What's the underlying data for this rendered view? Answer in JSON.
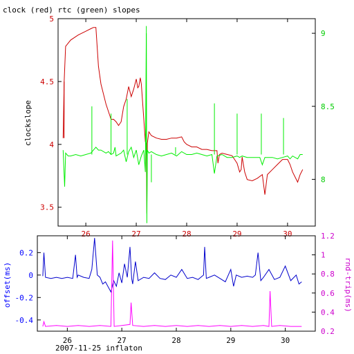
{
  "chart_data": [
    {
      "type": "line",
      "title": "clock (red) rtc (green) slopes",
      "ylabel": "clockslope",
      "xlim": [
        25.45,
        30.55
      ],
      "ylim_left": [
        3.35,
        5.0
      ],
      "ylim_right": [
        7.68,
        9.1
      ],
      "x_ticks": [
        26,
        27,
        28,
        29,
        30
      ],
      "y_left_ticks": [
        3.5,
        4,
        4.5,
        5
      ],
      "y_right_ticks": [
        8,
        8.5,
        9
      ],
      "colors": {
        "clock": "#cc0000",
        "rtc": "#00ee00",
        "axis_left": "#cc0000",
        "axis_right": "#00cc00",
        "frame": "#000000"
      },
      "series": [
        {
          "axis": "left",
          "x": [
            25.55,
            25.57,
            25.6,
            25.7,
            25.85,
            26.0,
            26.1,
            26.15,
            26.2,
            26.25,
            26.3,
            26.4,
            26.5,
            26.55,
            26.6,
            26.65,
            26.7,
            26.75,
            26.8,
            26.85,
            26.9,
            26.95,
            27.0,
            27.03,
            27.05,
            27.08,
            27.1,
            27.15,
            27.18,
            27.2,
            27.21,
            27.22,
            27.25,
            27.3,
            27.4,
            27.5,
            27.6,
            27.7,
            27.8,
            27.9,
            27.95,
            28.0,
            28.1,
            28.2,
            28.3,
            28.4,
            28.5,
            28.6,
            28.62,
            28.65,
            28.7,
            28.8,
            28.9,
            28.95,
            29.0,
            29.05,
            29.08,
            29.1,
            29.15,
            29.2,
            29.3,
            29.4,
            29.5,
            29.55,
            29.6,
            29.7,
            29.8,
            29.9,
            30.0,
            30.05,
            30.1,
            30.2,
            30.25,
            30.3
          ],
          "y": [
            4.05,
            4.5,
            4.78,
            4.83,
            4.87,
            4.9,
            4.92,
            4.93,
            4.93,
            4.62,
            4.48,
            4.32,
            4.2,
            4.2,
            4.18,
            4.15,
            4.18,
            4.3,
            4.36,
            4.46,
            4.38,
            4.44,
            4.52,
            4.45,
            4.46,
            4.53,
            4.48,
            4.2,
            4.02,
            4.0,
            3.45,
            4.01,
            4.1,
            4.07,
            4.05,
            4.04,
            4.04,
            4.05,
            4.05,
            4.06,
            4.02,
            4.0,
            3.98,
            3.98,
            3.96,
            3.96,
            3.95,
            3.95,
            3.85,
            3.92,
            3.93,
            3.92,
            3.91,
            3.88,
            3.85,
            3.78,
            3.8,
            3.9,
            3.78,
            3.72,
            3.71,
            3.73,
            3.76,
            3.6,
            3.76,
            3.8,
            3.84,
            3.88,
            3.88,
            3.84,
            3.78,
            3.7,
            3.76,
            3.8
          ]
        },
        {
          "axis": "right",
          "x": [
            25.55,
            25.58,
            25.6,
            25.65,
            25.7,
            25.8,
            25.9,
            26.0,
            26.1,
            26.15,
            26.2,
            26.25,
            26.3,
            26.4,
            26.45,
            26.5,
            26.55,
            26.58,
            26.6,
            26.7,
            26.75,
            26.8,
            26.85,
            26.9,
            26.95,
            27.0,
            27.05,
            27.1,
            27.15,
            27.18,
            27.2,
            27.21,
            27.22,
            27.25,
            27.3,
            27.4,
            27.5,
            27.6,
            27.7,
            27.8,
            27.9,
            28.0,
            28.1,
            28.2,
            28.3,
            28.4,
            28.5,
            28.55,
            28.6,
            28.7,
            28.8,
            28.9,
            29.0,
            29.05,
            29.1,
            29.2,
            29.3,
            29.45,
            29.5,
            29.55,
            29.6,
            29.7,
            29.8,
            29.9,
            30.0,
            30.05,
            30.1,
            30.2,
            30.25,
            30.3
          ],
          "y": [
            8.2,
            7.95,
            8.18,
            8.16,
            8.16,
            8.17,
            8.16,
            8.17,
            8.18,
            8.2,
            8.22,
            8.2,
            8.2,
            8.18,
            8.19,
            8.17,
            8.18,
            8.22,
            8.16,
            8.18,
            8.2,
            8.12,
            8.19,
            8.22,
            8.15,
            8.2,
            8.1,
            8.16,
            8.2,
            8.05,
            9.0,
            7.7,
            8.2,
            8.18,
            8.19,
            8.17,
            8.16,
            8.17,
            8.18,
            8.16,
            8.19,
            8.17,
            8.17,
            8.18,
            8.17,
            8.16,
            8.17,
            8.04,
            8.16,
            8.17,
            8.15,
            8.15,
            8.16,
            8.15,
            8.16,
            8.15,
            8.15,
            8.15,
            8.1,
            8.15,
            8.15,
            8.15,
            8.14,
            8.15,
            8.16,
            8.14,
            8.16,
            8.14,
            8.17,
            8.17
          ]
        }
      ],
      "spikes": [
        {
          "axis": "left",
          "x": 25.57,
          "y": 4.5
        },
        {
          "axis": "right",
          "x": 26.12,
          "y": 8.5
        },
        {
          "axis": "right",
          "x": 26.5,
          "y": 8.45
        },
        {
          "axis": "right",
          "x": 26.82,
          "y": 8.55
        },
        {
          "axis": "right",
          "x": 27.2,
          "y": 9.05
        },
        {
          "axis": "right",
          "x": 27.3,
          "y": 7.98
        },
        {
          "axis": "right",
          "x": 27.78,
          "y": 8.22
        },
        {
          "axis": "right",
          "x": 28.55,
          "y": 8.52
        },
        {
          "axis": "right",
          "x": 29.0,
          "y": 8.45
        },
        {
          "axis": "right",
          "x": 29.48,
          "y": 8.45
        },
        {
          "axis": "right",
          "x": 29.92,
          "y": 8.42
        }
      ]
    },
    {
      "type": "line",
      "title": "",
      "ylabel": "offset(ms)",
      "ylabel_right": "rnd-trip(ms)",
      "xlabel": "2007-11-25 inflaton",
      "xlim": [
        25.45,
        30.55
      ],
      "ylim_left": [
        -0.5,
        0.35
      ],
      "ylim_right": [
        0.2,
        1.2
      ],
      "x_ticks": [
        26,
        27,
        28,
        29,
        30
      ],
      "y_left_ticks": [
        -0.4,
        -0.2,
        0,
        0.2
      ],
      "y_right_ticks": [
        0.2,
        0.4,
        0.6,
        0.8,
        1,
        1.2
      ],
      "colors": {
        "offset": "#0000cc",
        "rndtrip": "#ff00ff",
        "axis_left": "#0000ff",
        "axis_right": "#cc00cc",
        "frame": "#000000"
      },
      "series": [
        {
          "axis": "left",
          "x": [
            25.55,
            25.57,
            25.6,
            25.7,
            25.8,
            25.9,
            26.0,
            26.1,
            26.15,
            26.18,
            26.2,
            26.3,
            26.4,
            26.45,
            26.5,
            26.55,
            26.6,
            26.65,
            26.7,
            26.8,
            26.85,
            26.9,
            26.95,
            27.0,
            27.05,
            27.1,
            27.15,
            27.18,
            27.2,
            27.25,
            27.3,
            27.4,
            27.5,
            27.6,
            27.7,
            27.8,
            27.9,
            28.0,
            28.1,
            28.2,
            28.3,
            28.4,
            28.5,
            28.52,
            28.55,
            28.6,
            28.7,
            28.8,
            28.9,
            29.0,
            29.05,
            29.1,
            29.2,
            29.3,
            29.4,
            29.45,
            29.5,
            29.55,
            29.6,
            29.7,
            29.8,
            29.9,
            30.0,
            30.1,
            30.2,
            30.25,
            30.3
          ],
          "y": [
            -0.01,
            0.2,
            -0.02,
            -0.03,
            -0.02,
            -0.03,
            -0.02,
            -0.03,
            0.18,
            -0.02,
            0.0,
            -0.02,
            -0.03,
            0.05,
            0.33,
            0.0,
            -0.02,
            -0.08,
            -0.06,
            -0.15,
            -0.05,
            -0.1,
            0.02,
            -0.07,
            0.1,
            -0.02,
            0.25,
            -0.03,
            -0.08,
            0.12,
            -0.05,
            -0.02,
            -0.03,
            0.02,
            -0.03,
            -0.04,
            0.0,
            -0.02,
            0.05,
            -0.03,
            -0.02,
            -0.04,
            0.0,
            0.25,
            -0.03,
            -0.02,
            0.0,
            -0.03,
            -0.06,
            0.05,
            -0.1,
            0.0,
            -0.02,
            -0.01,
            -0.02,
            0.0,
            0.2,
            -0.05,
            -0.02,
            0.05,
            -0.04,
            -0.02,
            0.08,
            -0.05,
            0.0,
            -0.08,
            -0.06
          ]
        },
        {
          "axis": "right",
          "x": [
            25.55,
            25.57,
            25.6,
            25.8,
            26.0,
            26.2,
            26.4,
            26.6,
            26.8,
            26.83,
            26.86,
            27.0,
            27.15,
            27.17,
            27.2,
            27.4,
            27.6,
            27.8,
            28.0,
            28.2,
            28.4,
            28.6,
            28.8,
            29.0,
            29.2,
            29.4,
            29.6,
            29.7,
            29.72,
            29.75,
            29.9,
            30.1,
            30.3
          ],
          "y": [
            0.25,
            0.3,
            0.25,
            0.26,
            0.25,
            0.26,
            0.25,
            0.26,
            0.25,
            1.15,
            0.25,
            0.26,
            0.27,
            0.5,
            0.26,
            0.25,
            0.26,
            0.25,
            0.26,
            0.25,
            0.26,
            0.25,
            0.26,
            0.25,
            0.26,
            0.25,
            0.26,
            0.25,
            0.62,
            0.25,
            0.26,
            0.25,
            0.25
          ]
        }
      ]
    }
  ]
}
